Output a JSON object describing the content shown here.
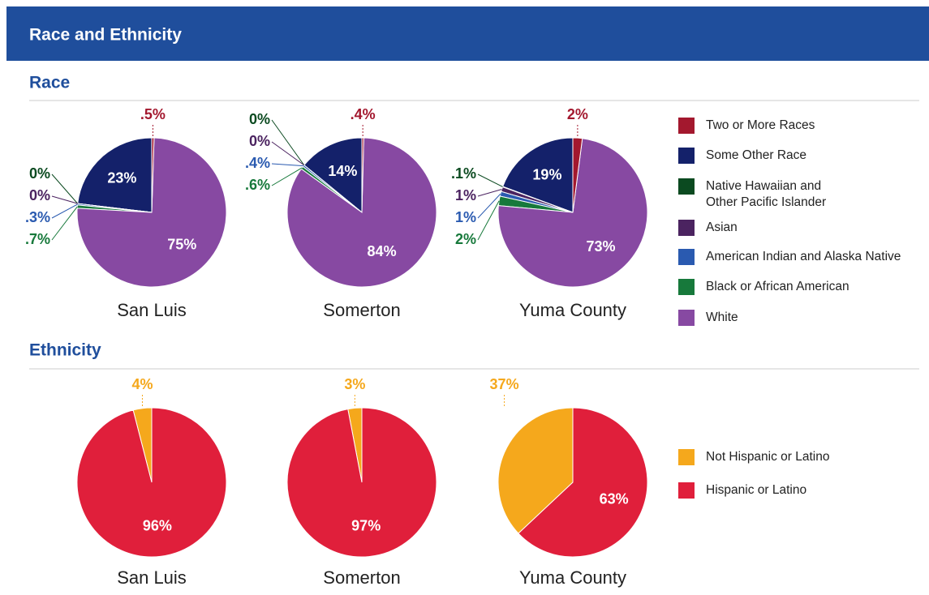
{
  "header": {
    "title": "Race and Ethnicity"
  },
  "chart_data": [
    {
      "type": "pie",
      "title": "Race",
      "categories": [
        "Two or More Races",
        "Some Other Race",
        "Native Hawaiian and Other Pacific Islander",
        "Asian",
        "American Indian and Alaska Native",
        "Black or African American",
        "White"
      ],
      "colors": [
        "#a3182e",
        "#14216a",
        "#0b4a20",
        "#4b2360",
        "#2a5ab0",
        "#17793b",
        "#8749a2"
      ],
      "series": [
        {
          "name": "San Luis",
          "values": [
            0.5,
            23,
            0,
            0,
            0.3,
            0.7,
            75
          ],
          "value_labels": [
            ".5%",
            "23%",
            "0%",
            "0%",
            ".3%",
            ".7%",
            "75%"
          ]
        },
        {
          "name": "Somerton",
          "values": [
            0.4,
            14,
            0,
            0,
            0.4,
            0.6,
            84
          ],
          "value_labels": [
            ".4%",
            "14%",
            "0%",
            "0%",
            ".4%",
            ".6%",
            "84%"
          ]
        },
        {
          "name": "Yuma County",
          "values": [
            2,
            19,
            0.1,
            1,
            1,
            2,
            73
          ],
          "value_labels": [
            "2%",
            "19%",
            ".1%",
            "1%",
            "1%",
            "2%",
            "73%"
          ]
        }
      ]
    },
    {
      "type": "pie",
      "title": "Ethnicity",
      "categories": [
        "Not Hispanic or Latino",
        "Hispanic or Latino"
      ],
      "colors": [
        "#f5a81c",
        "#e01f3b"
      ],
      "series": [
        {
          "name": "San Luis",
          "values": [
            4,
            96
          ],
          "value_labels": [
            "4%",
            "96%"
          ]
        },
        {
          "name": "Somerton",
          "values": [
            3,
            97
          ],
          "value_labels": [
            "3%",
            "97%"
          ]
        },
        {
          "name": "Yuma County",
          "values": [
            37,
            63
          ],
          "value_labels": [
            "37%",
            "63%"
          ]
        }
      ]
    }
  ]
}
